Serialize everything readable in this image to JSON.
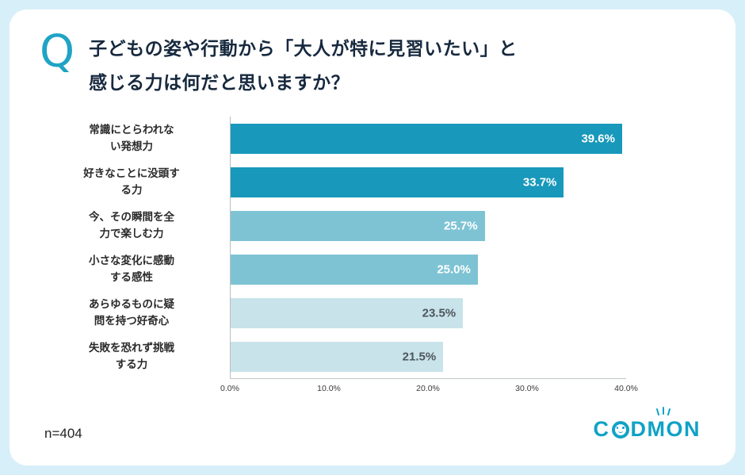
{
  "page": {
    "background": "#d7eff8",
    "card_background": "#ffffff",
    "accent": "#1fa3c6"
  },
  "question": {
    "mark": "Q",
    "line1": "子どもの姿や行動から「大人が特に見習いたい」と",
    "line2": "感じる力は何だと思いますか？"
  },
  "chart_data": {
    "type": "bar",
    "orientation": "horizontal",
    "title": "",
    "categories": [
      "常識にとらわれな\nい発想力",
      "好きなことに没頭す\nる力",
      "今、その瞬間を全\n力で楽しむ力",
      "小さな変化に感動\nする感性",
      "あらゆるものに疑\n問を持つ好奇心",
      "失敗を恐れず挑戦\nする力"
    ],
    "values": [
      39.6,
      33.7,
      25.7,
      25.0,
      23.5,
      21.5
    ],
    "value_labels": [
      "39.6%",
      "33.7%",
      "25.7%",
      "25.0%",
      "23.5%",
      "21.5%"
    ],
    "bar_colors": [
      "#1898ba",
      "#1898ba",
      "#7ec3d4",
      "#7ec3d4",
      "#c9e3ea",
      "#c9e3ea"
    ],
    "value_label_colors": [
      "#ffffff",
      "#ffffff",
      "#ffffff",
      "#ffffff",
      "#4d565c",
      "#4d565c"
    ],
    "x_ticks": [
      "0.0%",
      "10.0%",
      "20.0%",
      "30.0%",
      "40.0%"
    ],
    "xlim": [
      0,
      40
    ],
    "grid": false,
    "legend": false
  },
  "footer": {
    "sample_size": "n=404",
    "logo": {
      "name": "CODMON",
      "part1": "C",
      "part2": "DMON"
    }
  }
}
